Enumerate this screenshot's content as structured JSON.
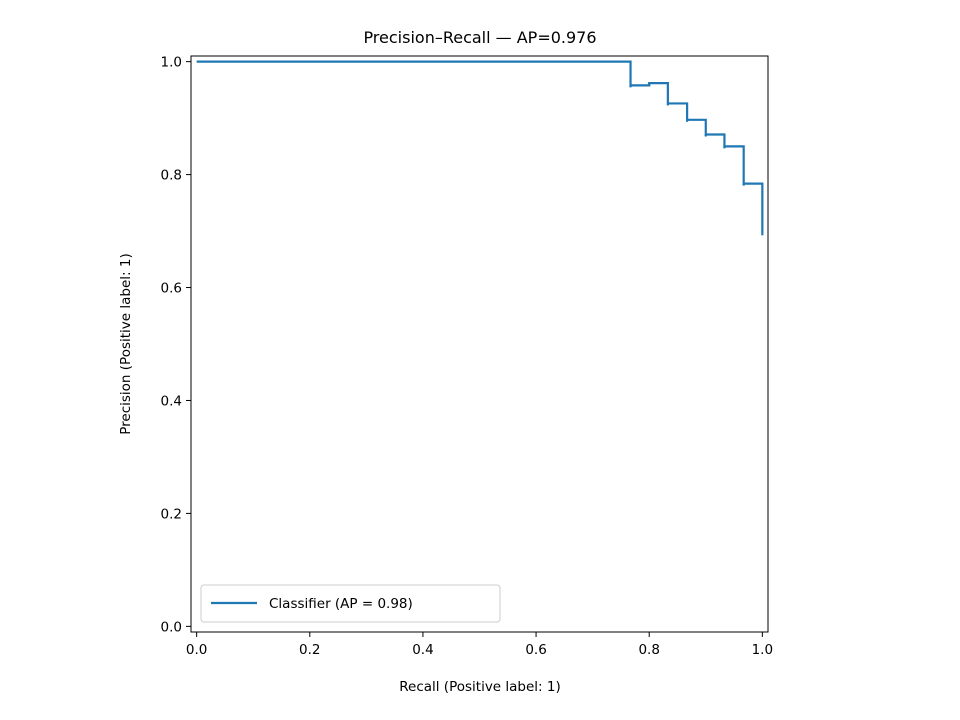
{
  "chart_data": {
    "type": "line",
    "title": "Precision–Recall — AP=0.976",
    "xlabel": "Recall (Positive label: 1)",
    "ylabel": "Precision (Positive label: 1)",
    "xlim": [
      -0.01,
      1.01
    ],
    "ylim": [
      -0.01,
      1.01
    ],
    "x_ticks": [
      "0.0",
      "0.2",
      "0.4",
      "0.6",
      "0.8",
      "1.0"
    ],
    "y_ticks": [
      "0.0",
      "0.2",
      "0.4",
      "0.6",
      "0.8",
      "1.0"
    ],
    "grid": false,
    "legend_position": "lower-left",
    "colors": {
      "series": "#1f77b4"
    },
    "series": [
      {
        "name": "Classifier (AP = 0.98)",
        "drawstyle": "steps",
        "recall": [
          0.0,
          0.767,
          0.767,
          0.8,
          0.8,
          0.833,
          0.833,
          0.867,
          0.867,
          0.9,
          0.9,
          0.933,
          0.933,
          0.967,
          0.967,
          1.0,
          1.0
        ],
        "precision": [
          1.0,
          1.0,
          0.958,
          0.958,
          0.962,
          0.962,
          0.926,
          0.926,
          0.897,
          0.897,
          0.871,
          0.871,
          0.85,
          0.85,
          0.784,
          0.784,
          0.696
        ]
      }
    ]
  }
}
